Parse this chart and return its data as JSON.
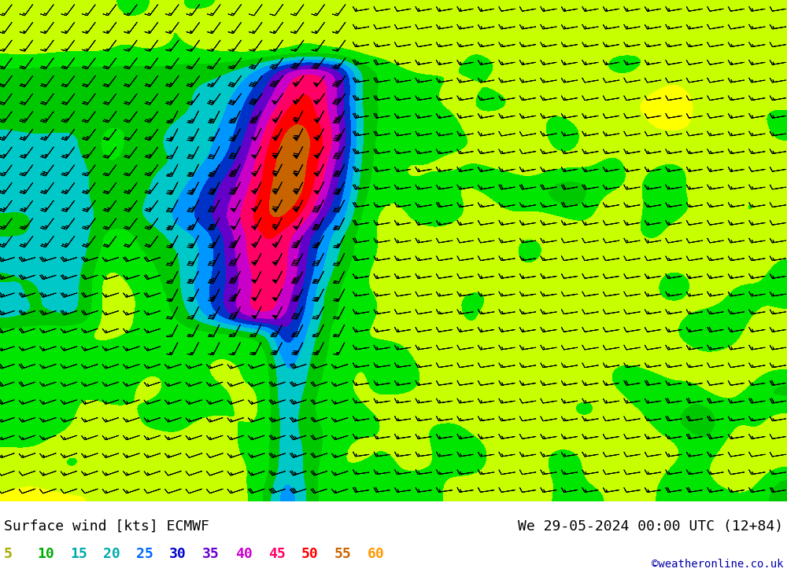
{
  "title_left": "Surface wind [kts] ECMWF",
  "title_right": "We 29-05-2024 00:00 UTC (12+84)",
  "credit": "©weatheronline.co.uk",
  "colorbar_values": [
    5,
    10,
    15,
    20,
    25,
    30,
    35,
    40,
    45,
    50,
    55,
    60
  ],
  "label_colors": [
    "#c8c800",
    "#00aa00",
    "#00aaaa",
    "#00aaaa",
    "#0096ff",
    "#0000cc",
    "#9900cc",
    "#cc00cc",
    "#ff0066",
    "#ff0000",
    "#cc6600",
    "#ff9900"
  ],
  "wind_levels": [
    0,
    5,
    10,
    15,
    20,
    25,
    30,
    35,
    40,
    45,
    50,
    55,
    60,
    100
  ],
  "wind_colors": [
    "#ffff96",
    "#ffff00",
    "#c8ff00",
    "#00e600",
    "#00c800",
    "#00c8c8",
    "#0096ff",
    "#0032c8",
    "#6400c8",
    "#c800c8",
    "#ff0064",
    "#ff0000",
    "#c86400"
  ],
  "background_color": "#ffffff",
  "font_size_title": 13,
  "font_size_legend": 13,
  "font_size_credit": 10,
  "figsize": [
    10.0,
    7.33
  ],
  "dpi": 100
}
